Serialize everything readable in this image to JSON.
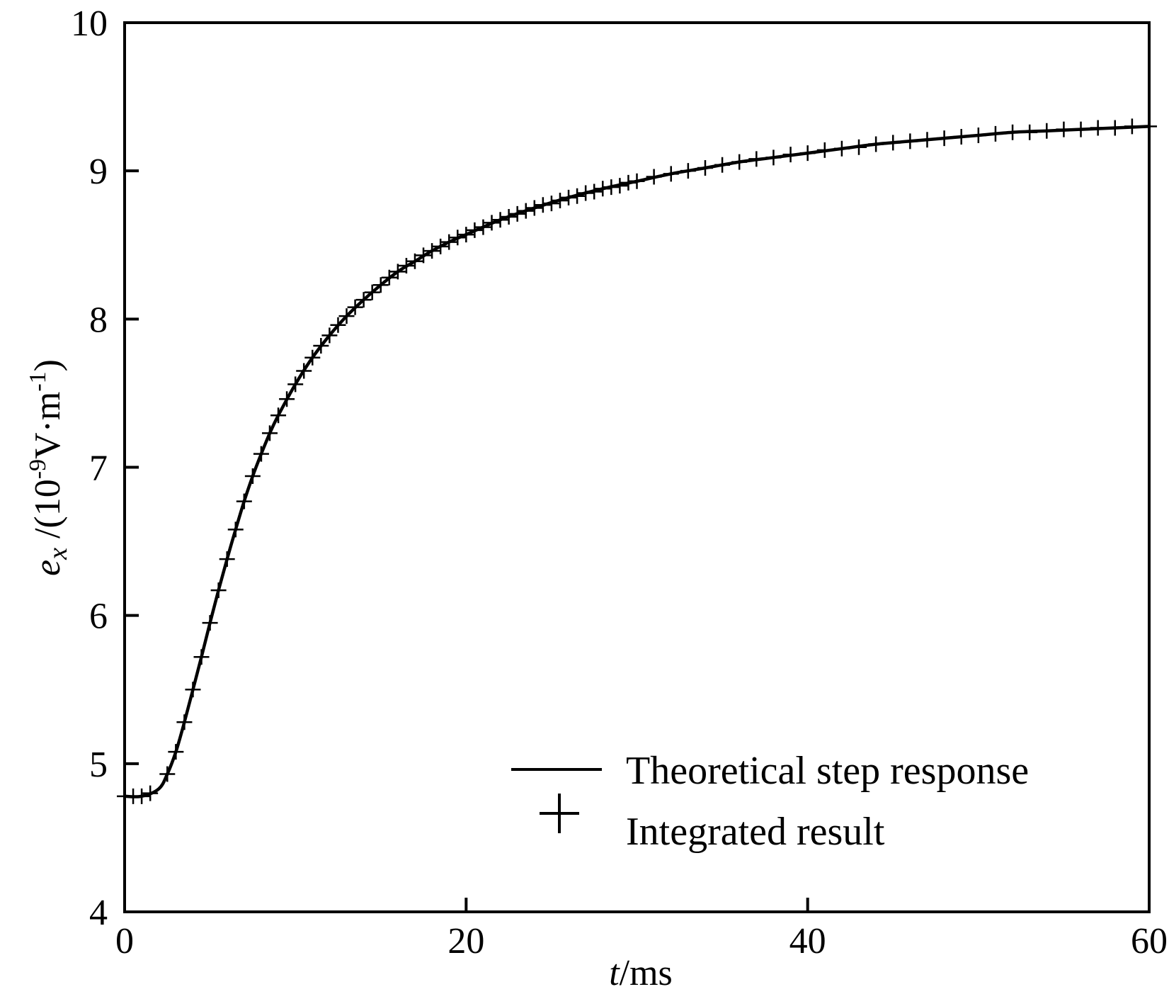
{
  "chart_data": {
    "type": "line",
    "title": "",
    "xlabel": {
      "var": "t",
      "unit": "/ms"
    },
    "ylabel": {
      "var": "e",
      "sub": "x",
      "unit_pre": " /(10",
      "unit_exp": "-9",
      "unit_mid": "V·m",
      "unit_exp2": "-1",
      "unit_post": ")"
    },
    "xlim": [
      0,
      60
    ],
    "ylim": [
      4,
      10
    ],
    "xticks": [
      0,
      20,
      40,
      60
    ],
    "yticks": [
      4,
      5,
      6,
      7,
      8,
      9,
      10
    ],
    "grid": false,
    "legend_position": "bottom-right",
    "series": [
      {
        "name": "Theoretical step response",
        "style": "solid-line",
        "color": "#000000",
        "x": [
          0,
          1,
          2,
          2.5,
          3,
          3.5,
          4,
          4.5,
          5,
          5.5,
          6,
          6.5,
          7,
          7.5,
          8,
          8.5,
          9,
          10,
          11,
          12,
          13,
          14,
          15,
          16,
          17,
          18,
          19,
          20,
          22,
          24,
          26,
          28,
          30,
          32,
          34,
          36,
          38,
          40,
          42,
          44,
          46,
          48,
          50,
          52,
          54,
          56,
          58,
          60
        ],
        "y": [
          4.78,
          4.78,
          4.83,
          4.93,
          5.08,
          5.28,
          5.5,
          5.72,
          5.95,
          6.17,
          6.38,
          6.58,
          6.77,
          6.94,
          7.09,
          7.23,
          7.35,
          7.56,
          7.74,
          7.89,
          8.02,
          8.13,
          8.23,
          8.32,
          8.39,
          8.46,
          8.52,
          8.57,
          8.67,
          8.75,
          8.82,
          8.88,
          8.93,
          8.98,
          9.02,
          9.06,
          9.09,
          9.12,
          9.15,
          9.18,
          9.2,
          9.22,
          9.24,
          9.26,
          9.27,
          9.28,
          9.29,
          9.3
        ]
      },
      {
        "name": "Integrated result",
        "style": "plus-marker",
        "color": "#000000",
        "x": [
          0,
          0.5,
          1,
          1.5,
          2.5,
          3,
          3.5,
          4,
          4.5,
          5,
          5.5,
          6,
          6.5,
          7,
          7.5,
          8,
          8.5,
          9,
          9.5,
          10,
          10.5,
          11,
          11.5,
          12,
          12.5,
          13,
          13.5,
          14,
          14.5,
          15,
          15.5,
          16,
          16.5,
          17,
          17.5,
          18,
          18.5,
          19,
          19.5,
          20,
          20.5,
          21,
          21.5,
          22,
          22.5,
          23,
          23.5,
          24,
          24.5,
          25,
          25.5,
          26,
          26.5,
          27,
          27.5,
          28,
          28.5,
          29,
          29.5,
          30,
          31,
          32,
          33,
          34,
          35,
          36,
          37,
          38,
          39,
          40,
          41,
          42,
          43,
          44,
          45,
          46,
          47,
          48,
          49,
          50,
          51,
          52,
          53,
          54,
          55,
          56,
          57,
          58,
          59,
          60
        ],
        "y": [
          4.78,
          4.78,
          4.78,
          4.8,
          4.93,
          5.08,
          5.28,
          5.5,
          5.72,
          5.95,
          6.17,
          6.38,
          6.58,
          6.77,
          6.94,
          7.09,
          7.23,
          7.35,
          7.46,
          7.56,
          7.65,
          7.74,
          7.82,
          7.89,
          7.96,
          8.02,
          8.08,
          8.13,
          8.18,
          8.23,
          8.28,
          8.32,
          8.36,
          8.39,
          8.43,
          8.46,
          8.49,
          8.52,
          8.55,
          8.57,
          8.6,
          8.62,
          8.65,
          8.67,
          8.69,
          8.71,
          8.73,
          8.75,
          8.77,
          8.78,
          8.8,
          8.82,
          8.83,
          8.85,
          8.86,
          8.88,
          8.89,
          8.9,
          8.92,
          8.93,
          8.96,
          8.98,
          9.0,
          9.02,
          9.04,
          9.06,
          9.08,
          9.09,
          9.11,
          9.12,
          9.14,
          9.15,
          9.16,
          9.18,
          9.19,
          9.2,
          9.21,
          9.22,
          9.23,
          9.24,
          9.25,
          9.26,
          9.26,
          9.27,
          9.28,
          9.28,
          9.29,
          9.29,
          9.3,
          9.3
        ]
      }
    ]
  }
}
